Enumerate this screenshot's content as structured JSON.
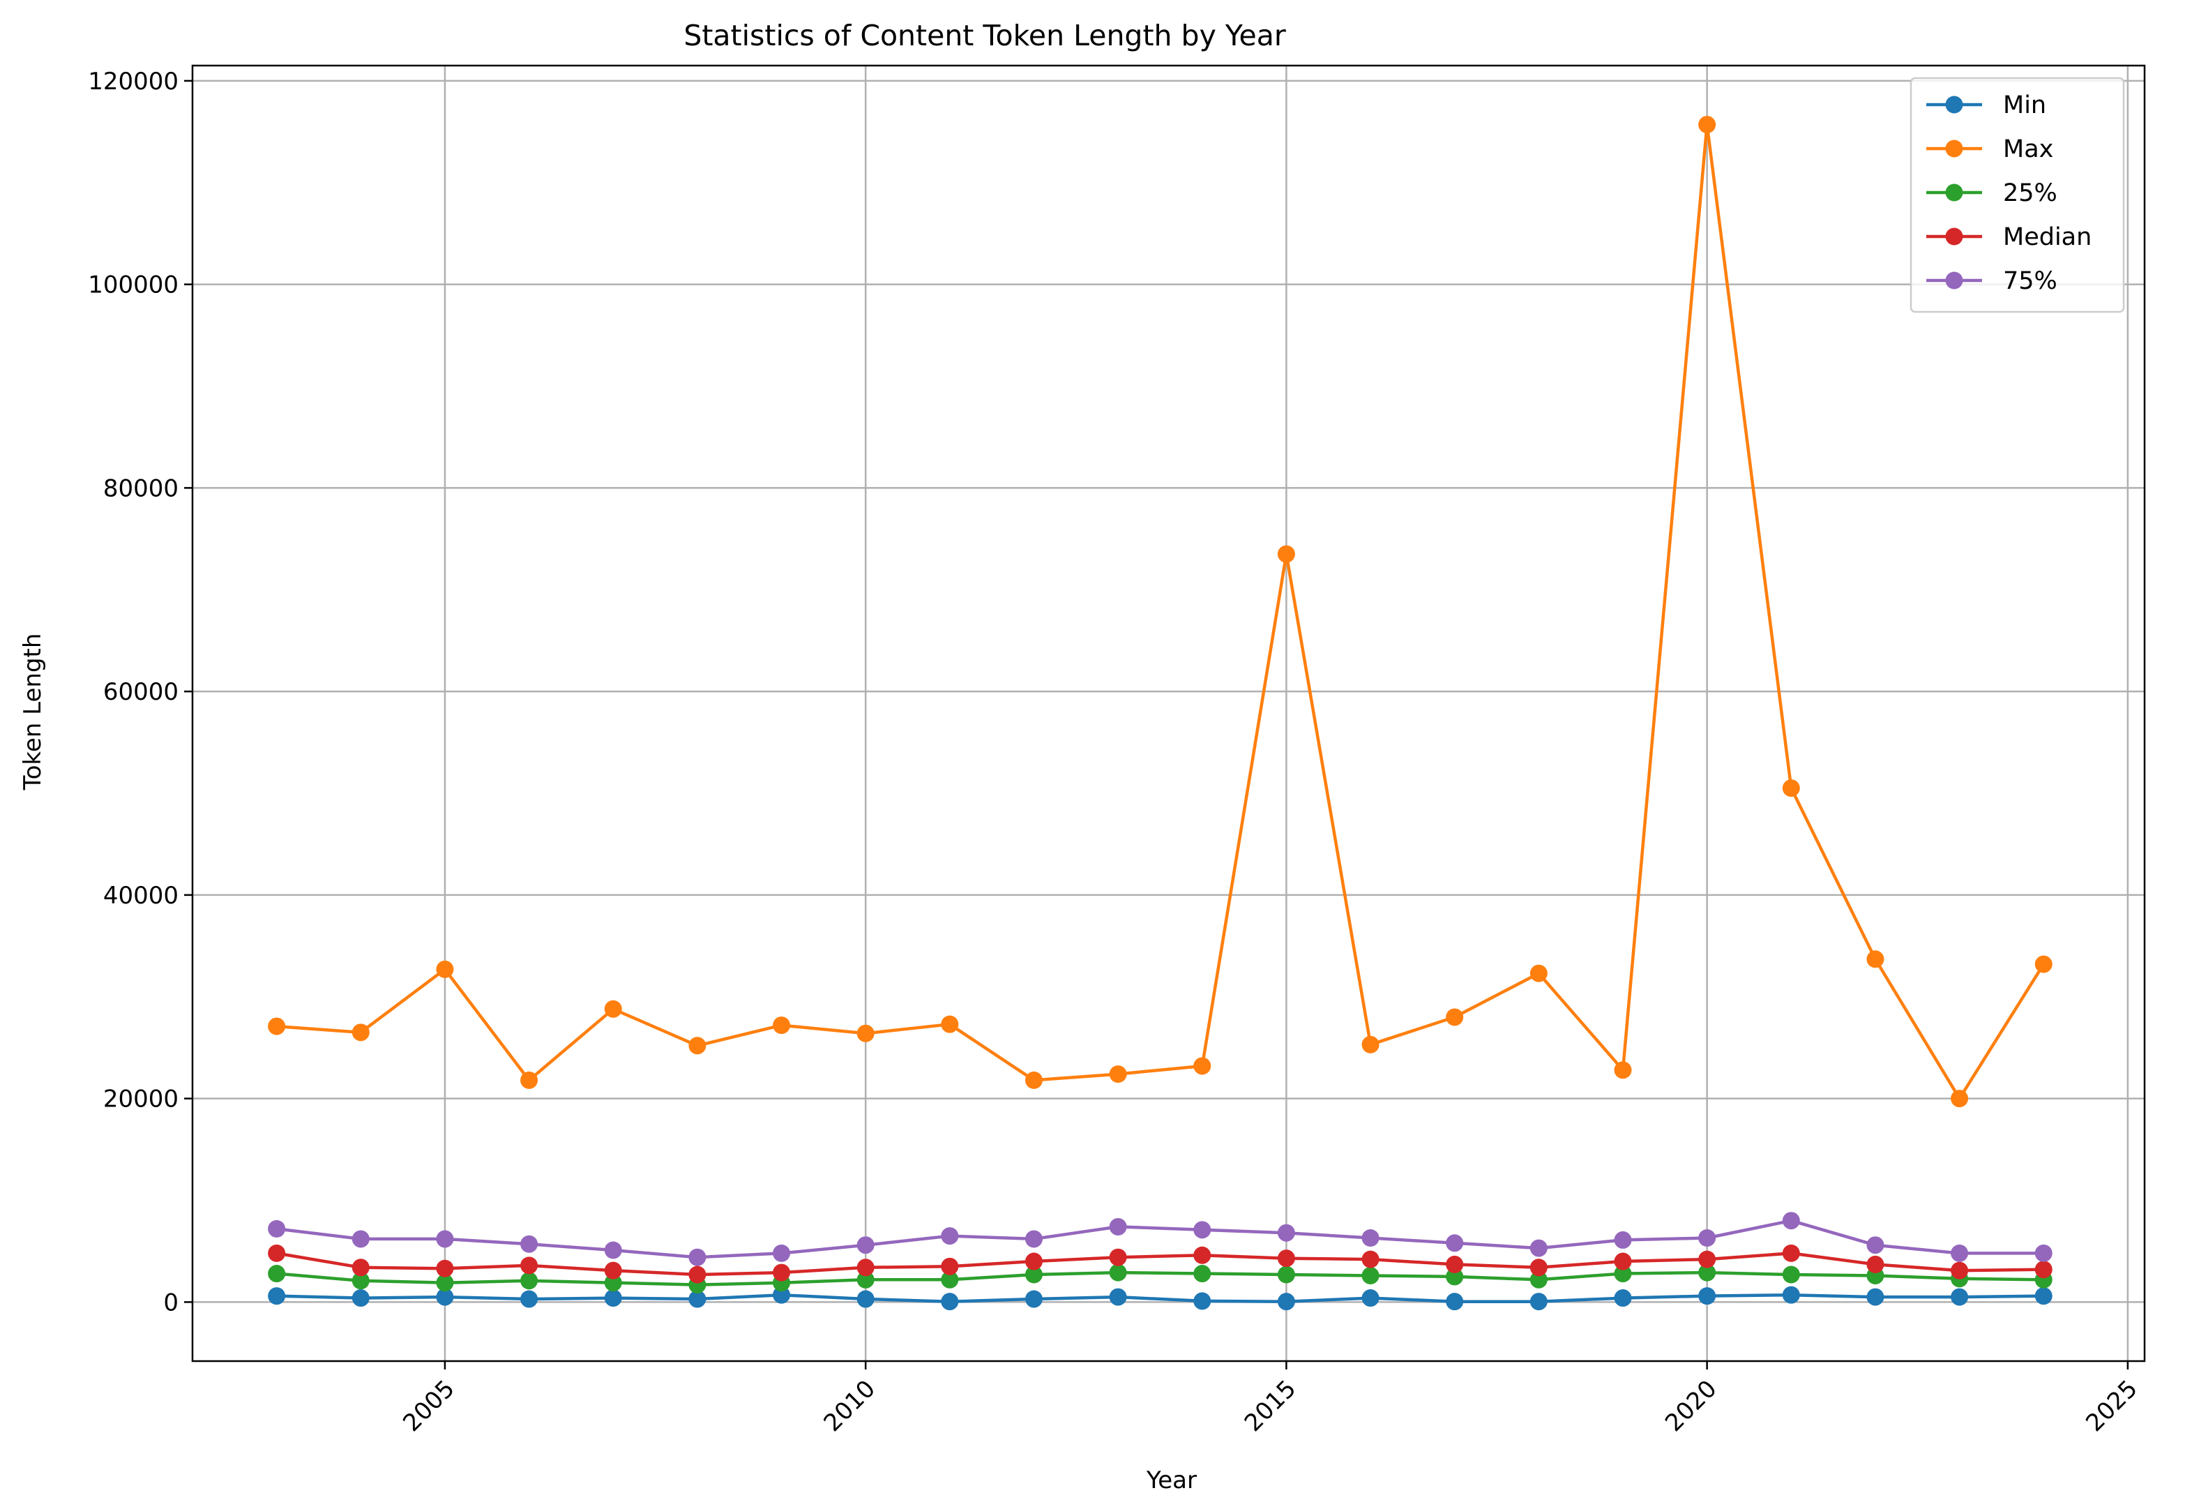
{
  "chart_data": {
    "type": "line",
    "title": "Statistics of Content Token Length by Year",
    "xlabel": "Year",
    "ylabel": "Token Length",
    "xlim": [
      2002,
      2025.2
    ],
    "ylim": [
      -5800,
      121500
    ],
    "xticks": [
      2005,
      2010,
      2015,
      2020,
      2025
    ],
    "yticks": [
      0,
      20000,
      40000,
      60000,
      80000,
      100000,
      120000
    ],
    "grid": true,
    "legend_position": "top-right",
    "x": [
      2003,
      2004,
      2005,
      2006,
      2007,
      2008,
      2009,
      2010,
      2011,
      2012,
      2013,
      2014,
      2015,
      2016,
      2017,
      2018,
      2019,
      2020,
      2021,
      2022,
      2023,
      2024
    ],
    "series": [
      {
        "name": "Min",
        "color": "#1f77b4",
        "values": [
          600,
          400,
          500,
          300,
          400,
          300,
          700,
          300,
          50,
          300,
          500,
          100,
          50,
          400,
          50,
          50,
          400,
          600,
          700,
          500,
          500,
          600
        ]
      },
      {
        "name": "Max",
        "color": "#ff7f0e",
        "values": [
          27100,
          26500,
          32700,
          21800,
          28800,
          25200,
          27200,
          26400,
          27300,
          21800,
          22400,
          23200,
          73500,
          25300,
          28000,
          32300,
          22800,
          115700,
          50500,
          33700,
          20000,
          33200
        ]
      },
      {
        "name": "25%",
        "color": "#2ca02c",
        "values": [
          2800,
          2100,
          1900,
          2100,
          1900,
          1700,
          1900,
          2200,
          2200,
          2700,
          2900,
          2800,
          2700,
          2600,
          2500,
          2200,
          2800,
          2900,
          2700,
          2600,
          2300,
          2200
        ]
      },
      {
        "name": "Median",
        "color": "#d62728",
        "values": [
          4800,
          3400,
          3300,
          3600,
          3100,
          2700,
          2900,
          3400,
          3500,
          4000,
          4400,
          4600,
          4300,
          4200,
          3700,
          3400,
          4000,
          4200,
          4800,
          3700,
          3100,
          3200
        ]
      },
      {
        "name": "75%",
        "color": "#9467bd",
        "values": [
          7200,
          6200,
          6200,
          5700,
          5100,
          4400,
          4800,
          5600,
          6500,
          6200,
          7400,
          7100,
          6800,
          6300,
          5800,
          5300,
          6100,
          6300,
          8000,
          5600,
          4800,
          4800
        ]
      }
    ]
  }
}
